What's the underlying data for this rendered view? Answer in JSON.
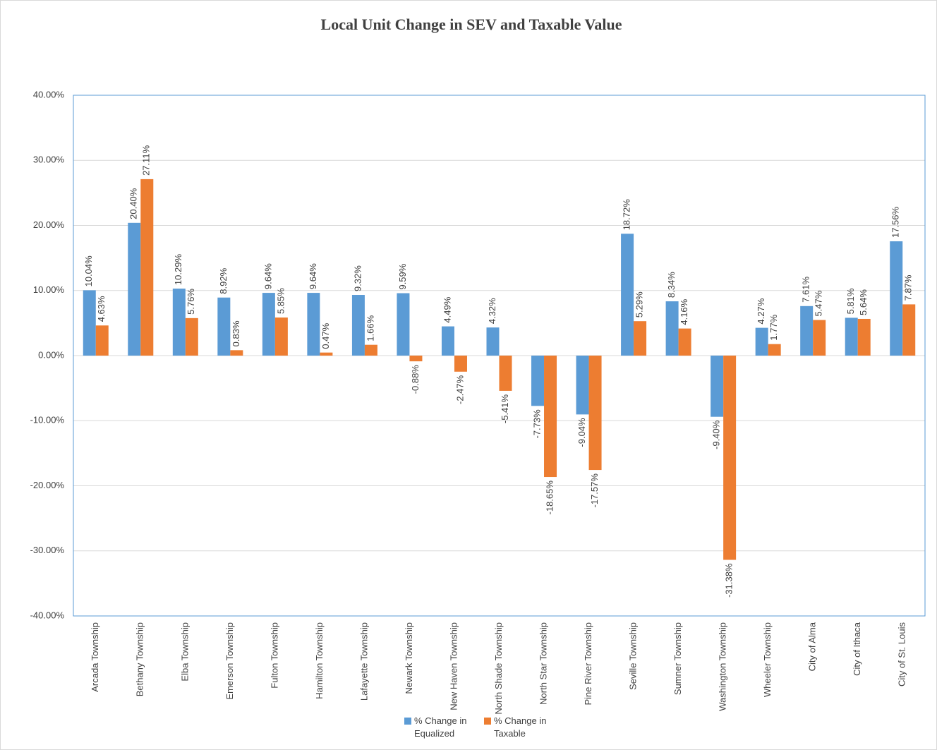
{
  "chart_data": {
    "type": "bar",
    "title": "Local Unit Change in SEV and Taxable Value",
    "categories": [
      "Arcada Township",
      "Bethany Township",
      "Elba Township",
      "Emerson Township",
      "Fulton Township",
      "Hamilton Township",
      "Lafayette Township",
      "Newark Township",
      "New Haven Township",
      "North Shade Township",
      "North Star Township",
      "Pine River Township",
      "Seville Township",
      "Sumner Township",
      "Washington Township",
      "Wheeler Township",
      "City of Alma",
      "City of Ithaca",
      "City of St. Louis"
    ],
    "series": [
      {
        "name": "% Change in Equalized",
        "color": "#5b9bd5",
        "values": [
          10.04,
          20.4,
          10.29,
          8.92,
          9.64,
          9.64,
          9.32,
          9.59,
          4.49,
          4.32,
          -7.73,
          -9.04,
          18.72,
          8.34,
          -9.4,
          4.27,
          7.61,
          5.81,
          17.56
        ],
        "value_labels": [
          "10.04%",
          "20.40%",
          "10.29%",
          "8.92%",
          "9.64%",
          "9.64%",
          "9.32%",
          "9.59%",
          "4.49%",
          "4.32%",
          "-7.73%",
          "-9.04%",
          "18.72%",
          "8.34%",
          "-9.40%",
          "4.27%",
          "7.61%",
          "5.81%",
          "17.56%"
        ]
      },
      {
        "name": "% Change in Taxable",
        "color": "#ed7d31",
        "values": [
          4.63,
          27.11,
          5.76,
          0.83,
          5.85,
          0.47,
          1.66,
          -0.88,
          -2.47,
          -5.41,
          -18.65,
          -17.57,
          5.29,
          4.16,
          -31.38,
          1.77,
          5.47,
          5.64,
          7.87
        ],
        "value_labels": [
          "4.63%",
          "27.11%",
          "5.76%",
          "0.83%",
          "5.85%",
          "0.47%",
          "1.66%",
          "-0.88%",
          "-2.47%",
          "-5.41%",
          "-18.65%",
          "-17.57%",
          "5.29%",
          "4.16%",
          "-31.38%",
          "1.77%",
          "5.47%",
          "5.64%",
          "7.87%"
        ]
      }
    ],
    "ylim": [
      -40,
      40
    ],
    "yticks": [
      {
        "value": -40,
        "label": "-40.00%"
      },
      {
        "value": -30,
        "label": "-30.00%"
      },
      {
        "value": -20,
        "label": "-20.00%"
      },
      {
        "value": -10,
        "label": "-10.00%"
      },
      {
        "value": 0,
        "label": "0.00%"
      },
      {
        "value": 10,
        "label": "10.00%"
      },
      {
        "value": 20,
        "label": "20.00%"
      },
      {
        "value": 30,
        "label": "30.00%"
      },
      {
        "value": 40,
        "label": "40.00%"
      }
    ],
    "grid": true,
    "legend": "bottom"
  }
}
